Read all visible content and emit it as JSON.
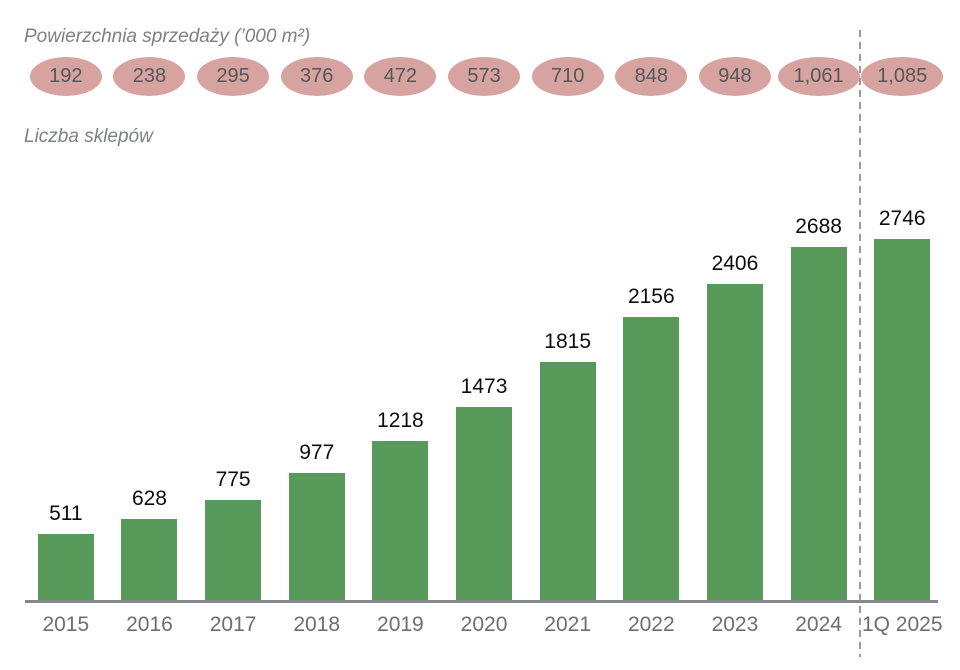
{
  "titles": {
    "area": "Powierzchnia sprzedaży (’000 m²)",
    "stores": "Liczba sklepów"
  },
  "colors": {
    "bar_green": "#579a59",
    "oval_pink": "#d7a3a1",
    "oval_text": "#565759",
    "title_gray": "#7e8083",
    "axis_gray": "#85878a",
    "tick_gray": "#6d6e71",
    "divider_gray": "#9a9a9a",
    "value_label_black": "#0d0d0d"
  },
  "chart_data": {
    "type": "bar",
    "categories": [
      "2015",
      "2016",
      "2017",
      "2018",
      "2019",
      "2020",
      "2021",
      "2022",
      "2023",
      "2024",
      "1Q 2025"
    ],
    "series": [
      {
        "name": "Liczba sklepów",
        "values": [
          511,
          628,
          775,
          977,
          1218,
          1473,
          1815,
          2156,
          2406,
          2688,
          2746
        ],
        "labels": [
          "511",
          "628",
          "775",
          "977",
          "1218",
          "1473",
          "1815",
          "2156",
          "2406",
          "2688",
          "2746"
        ],
        "style": "green-bars"
      },
      {
        "name": "Powierzchnia sprzedaży (’000 m²)",
        "values": [
          192,
          238,
          295,
          376,
          472,
          573,
          710,
          848,
          948,
          1061,
          1085
        ],
        "labels": [
          "192",
          "238",
          "295",
          "376",
          "472",
          "573",
          "710",
          "848",
          "948",
          "1,061",
          "1,085"
        ],
        "style": "pink-ovals"
      }
    ],
    "ylim": [
      0,
      2746
    ],
    "grid": false,
    "legend": "none",
    "divider_between": [
      "2024",
      "1Q 2025"
    ],
    "notes": "dashed vertical divider separates full years from 1Q 2025"
  }
}
